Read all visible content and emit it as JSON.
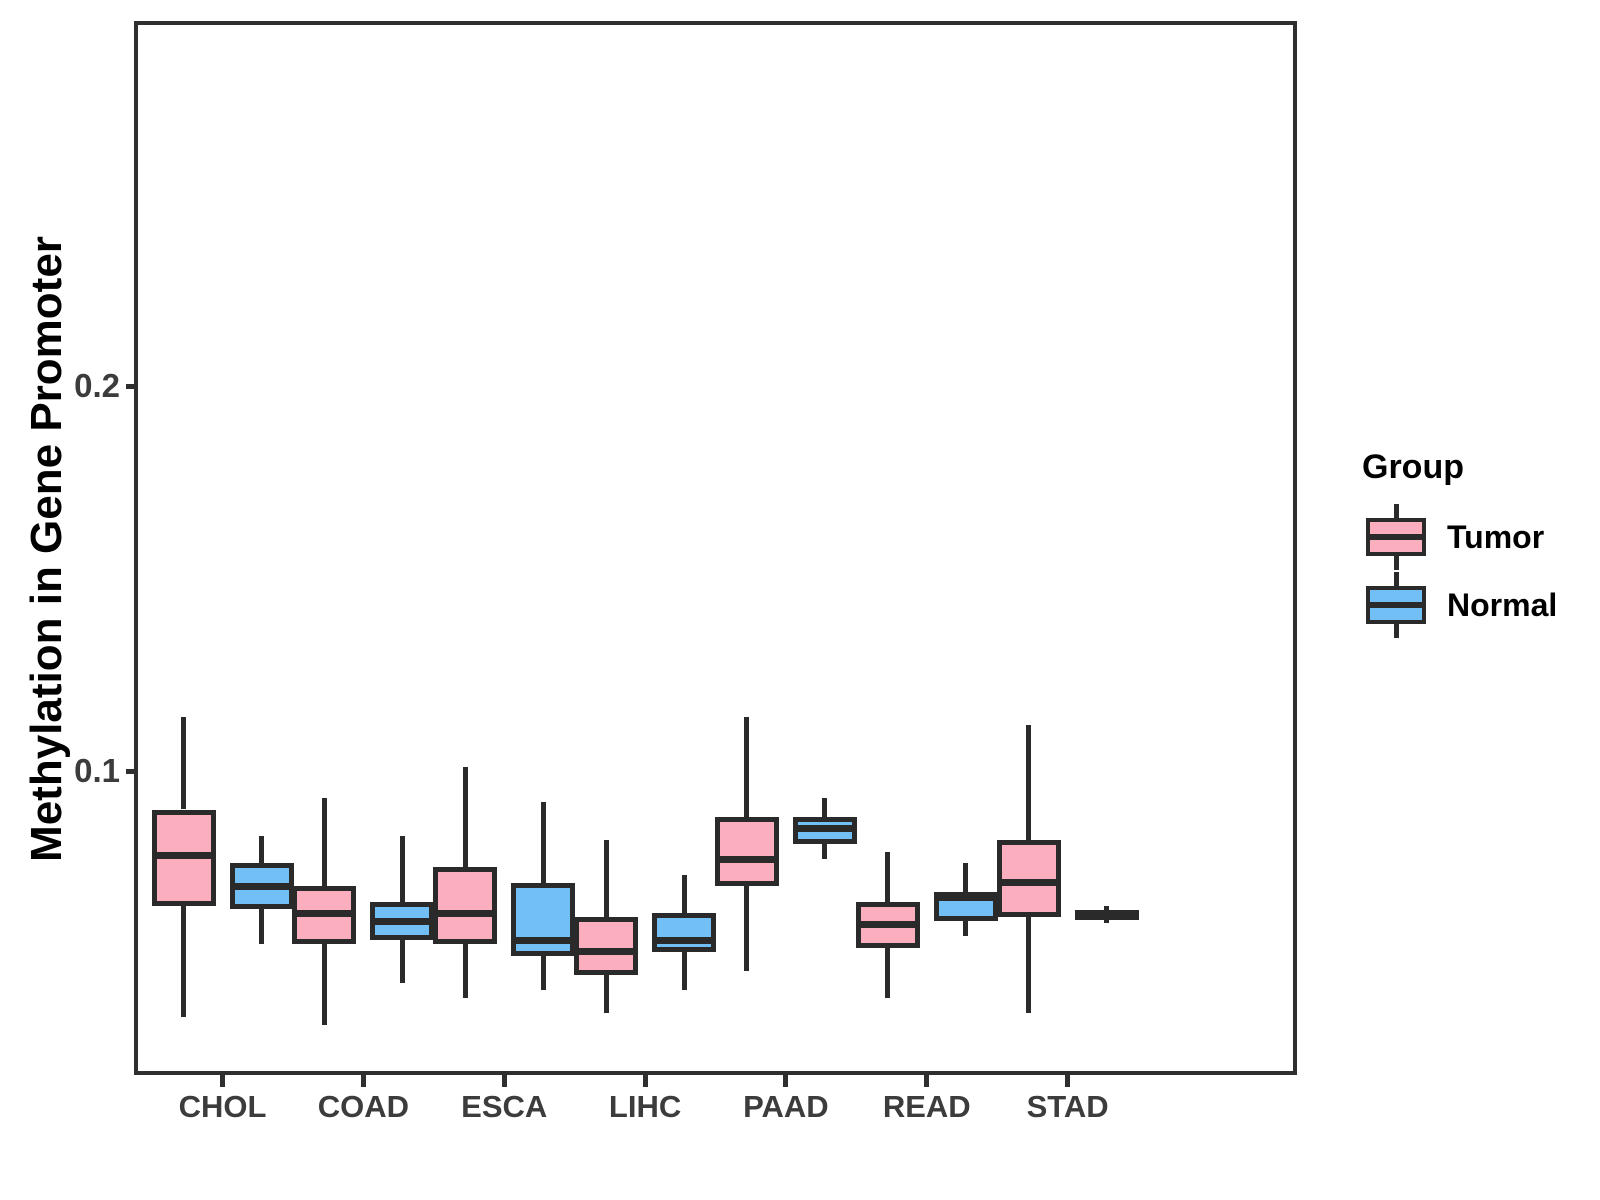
{
  "chart_data": {
    "type": "boxplot",
    "title": "",
    "xlabel": "",
    "ylabel": "Methylation in Gene Promoter",
    "categories": [
      "CHOL",
      "COAD",
      "ESCA",
      "LIHC",
      "PAAD",
      "READ",
      "STAD"
    ],
    "ylim": [
      0.022,
      0.294
    ],
    "y_ticks": [
      {
        "value": 0.2,
        "label": "0.2"
      },
      {
        "value": 0.1,
        "label": "0.1"
      }
    ],
    "grid": false,
    "legend": {
      "title": "Group",
      "position": "right",
      "entries": [
        {
          "label": "Tumor",
          "fill": "#FBAEBE"
        },
        {
          "label": "Normal",
          "fill": "#72BFF6"
        }
      ]
    },
    "series": [
      {
        "name": "Tumor",
        "fill": "#FBAEBE",
        "stats": [
          {
            "category": "CHOL",
            "low": 0.036,
            "q1": 0.065,
            "median": 0.078,
            "q3": 0.09,
            "high": 0.114
          },
          {
            "category": "COAD",
            "low": 0.034,
            "q1": 0.055,
            "median": 0.063,
            "q3": 0.07,
            "high": 0.093
          },
          {
            "category": "ESCA",
            "low": 0.041,
            "q1": 0.055,
            "median": 0.063,
            "q3": 0.075,
            "high": 0.101
          },
          {
            "category": "LIHC",
            "low": 0.037,
            "q1": 0.047,
            "median": 0.053,
            "q3": 0.062,
            "high": 0.082
          },
          {
            "category": "PAAD",
            "low": 0.048,
            "q1": 0.07,
            "median": 0.077,
            "q3": 0.088,
            "high": 0.114
          },
          {
            "category": "READ",
            "low": 0.041,
            "q1": 0.054,
            "median": 0.06,
            "q3": 0.066,
            "high": 0.079
          },
          {
            "category": "STAD",
            "low": 0.037,
            "q1": 0.062,
            "median": 0.071,
            "q3": 0.082,
            "high": 0.112
          }
        ]
      },
      {
        "name": "Normal",
        "fill": "#72BFF6",
        "stats": [
          {
            "category": "CHOL",
            "low": 0.055,
            "q1": 0.064,
            "median": 0.07,
            "q3": 0.076,
            "high": 0.083
          },
          {
            "category": "COAD",
            "low": 0.045,
            "q1": 0.056,
            "median": 0.061,
            "q3": 0.066,
            "high": 0.083
          },
          {
            "category": "ESCA",
            "low": 0.043,
            "q1": 0.052,
            "median": 0.056,
            "q3": 0.071,
            "high": 0.092
          },
          {
            "category": "LIHC",
            "low": 0.043,
            "q1": 0.053,
            "median": 0.056,
            "q3": 0.063,
            "high": 0.073
          },
          {
            "category": "PAAD",
            "low": 0.077,
            "q1": 0.081,
            "median": 0.085,
            "q3": 0.088,
            "high": 0.093
          },
          {
            "category": "READ",
            "low": 0.057,
            "q1": 0.061,
            "median": 0.067,
            "q3": 0.0685,
            "high": 0.076
          },
          {
            "category": "STAD",
            "low": 0.0605,
            "q1": 0.0615,
            "median": 0.0625,
            "q3": 0.0638,
            "high": 0.0648
          }
        ]
      }
    ],
    "colors": {
      "box_stroke": "#2A2A2A",
      "panel_border": "#2F2F2F",
      "tick_label": "#3C3C3C",
      "axis_title": "#000000"
    }
  }
}
